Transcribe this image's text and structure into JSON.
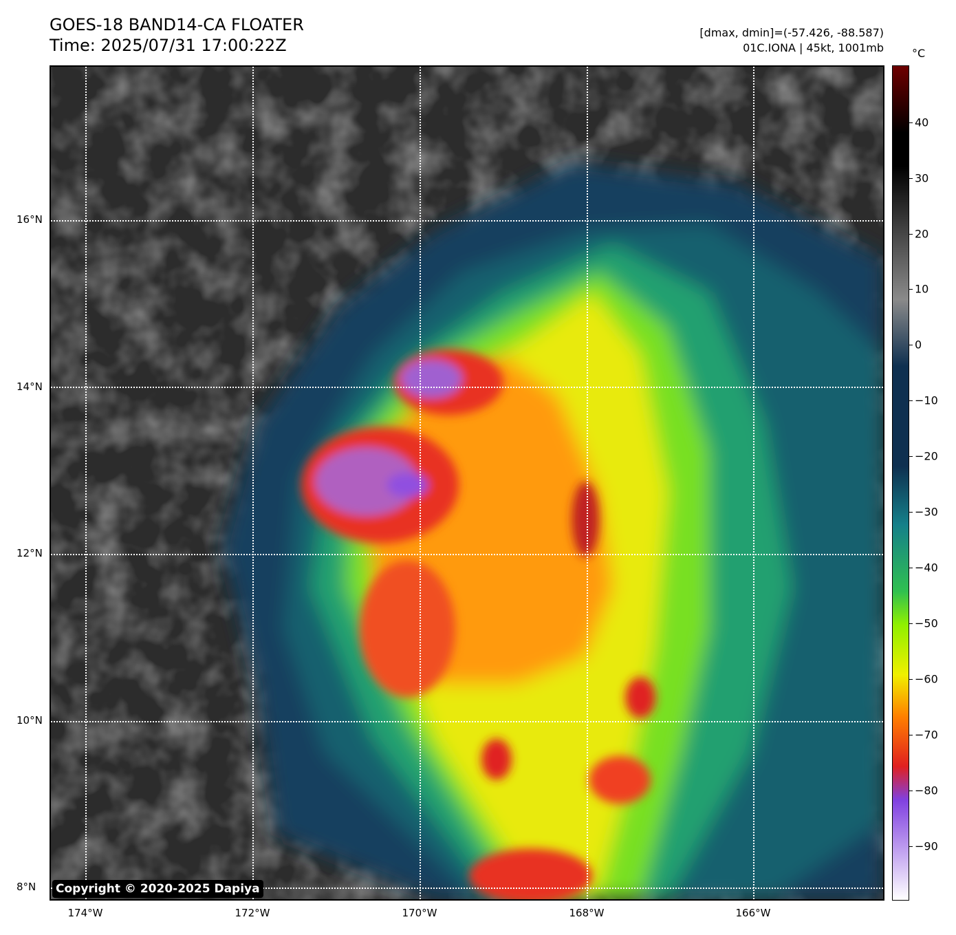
{
  "header": {
    "title_line1": "GOES-18 BAND14-CA FLOATER",
    "title_line2": "Time: 2025/07/31 17:00:22Z",
    "meta_line1": "[dmax, dmin]=(-57.426, -88.587)",
    "meta_line2": "01C.IONA | 45kt, 1001mb"
  },
  "map": {
    "lat_labels": [
      "16°N",
      "14°N",
      "12°N",
      "10°N",
      "8°N"
    ],
    "lon_labels": [
      "174°W",
      "172°W",
      "170°W",
      "168°W",
      "166°W"
    ],
    "copyright": "Copyright © 2020-2025 Dapiya"
  },
  "colorbar": {
    "unit": "°C",
    "tick_labels": [
      "40",
      "30",
      "20",
      "10",
      "0",
      "−10",
      "−20",
      "−30",
      "−40",
      "−50",
      "−60",
      "−70",
      "−80",
      "−90"
    ],
    "colors": {
      "top": "#6e0000",
      "warm": "#000000",
      "gray": "#8a8a8a",
      "navy": "#0f3050",
      "teal": "#15808a",
      "green": "#30c050",
      "lime": "#90f000",
      "yellow": "#f0f000",
      "orange": "#ff8000",
      "red": "#e02020",
      "purple": "#8040e0",
      "white": "#ffffff"
    }
  }
}
